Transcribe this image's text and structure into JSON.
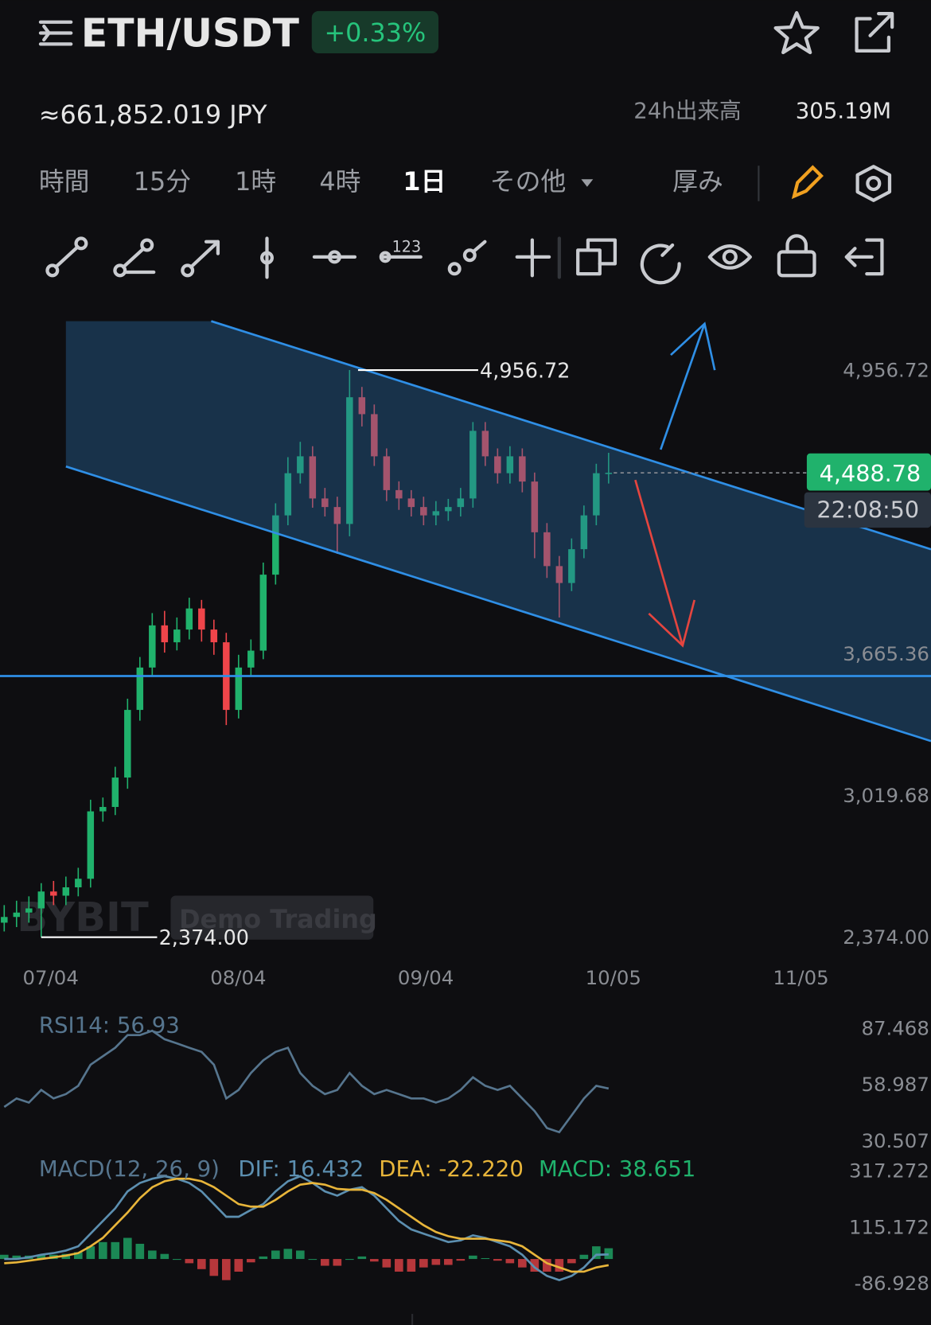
{
  "header": {
    "symbol": "ETH/USDT",
    "change": "+0.33%",
    "jpy": "≈661,852.019 JPY",
    "volume_label": "24h出来高",
    "volume": "305.19M"
  },
  "tabs": [
    "時間",
    "15分",
    "1時",
    "4時",
    "1日",
    "その他",
    "厚み"
  ],
  "chart_data": [
    {
      "type": "candlestick",
      "open": [
        2440,
        2466,
        2486,
        2505,
        2582,
        2563,
        2601,
        2640,
        2947,
        2967,
        3101,
        3409,
        3602,
        3794,
        3717,
        3775,
        3871,
        3775,
        3717,
        3409,
        3602,
        3679,
        4025,
        4295,
        4487,
        4564,
        4372,
        4333,
        4256,
        4833,
        4756,
        4564,
        4410,
        4372,
        4333,
        4295,
        4314,
        4333,
        4372,
        4680,
        4564,
        4487,
        4564,
        4449,
        4218,
        4064,
        3987,
        4141,
        4295,
        4487
      ],
      "high": [
        2520,
        2540,
        2560,
        2620,
        2630,
        2650,
        2690,
        3000,
        3010,
        3150,
        3460,
        3650,
        3850,
        3860,
        3830,
        3920,
        3910,
        3820,
        3760,
        3660,
        3730,
        4080,
        4350,
        4560,
        4630,
        4610,
        4420,
        4380,
        4956.72,
        4880,
        4800,
        4600,
        4450,
        4410,
        4380,
        4360,
        4370,
        4420,
        4720,
        4720,
        4600,
        4610,
        4600,
        4490,
        4260,
        4110,
        4190,
        4340,
        4530,
        4580
      ],
      "low": [
        2400,
        2420,
        2440,
        2374,
        2520,
        2520,
        2560,
        2600,
        2900,
        2930,
        3050,
        3360,
        3560,
        3670,
        3680,
        3730,
        3720,
        3660,
        3340,
        3370,
        3560,
        3640,
        3980,
        4250,
        4440,
        4330,
        4290,
        4120,
        4200,
        4700,
        4520,
        4360,
        4320,
        4290,
        4250,
        4250,
        4270,
        4290,
        4330,
        4520,
        4440,
        4440,
        4400,
        4100,
        4010,
        3830,
        3950,
        4100,
        4250,
        4440
      ],
      "close": [
        2466,
        2486,
        2505,
        2582,
        2563,
        2601,
        2640,
        2947,
        2967,
        3101,
        3409,
        3602,
        3794,
        3717,
        3775,
        3871,
        3775,
        3717,
        3409,
        3602,
        3679,
        4025,
        4295,
        4487,
        4564,
        4372,
        4333,
        4256,
        4833,
        4756,
        4564,
        4410,
        4372,
        4333,
        4295,
        4314,
        4333,
        4372,
        4680,
        4564,
        4487,
        4564,
        4449,
        4218,
        4064,
        3987,
        4141,
        4295,
        4487,
        4489
      ],
      "up_color": "#20b26c",
      "down_color": "#ef454a",
      "ylim": [
        2332,
        5218
      ],
      "yticks": [
        {
          "value": 4956.72,
          "label": "4,956.72"
        },
        {
          "value": 3665.36,
          "label": "3,665.36"
        },
        {
          "value": 3019.68,
          "label": "3,019.68"
        },
        {
          "value": 2374,
          "label": "2,374.00"
        }
      ],
      "xticks": [
        "07/04",
        "08/04",
        "09/04",
        "10/05",
        "11/05"
      ],
      "last_price": {
        "value": 4488.78,
        "label": "4,488.78"
      },
      "countdown": "22:08:50",
      "annotations": [
        {
          "value": 4956.72,
          "label": "4,956.72"
        },
        {
          "value": 2374,
          "label": "2,374.00"
        }
      ],
      "watermark": "BYBIT",
      "demo": "Demo Trading"
    },
    {
      "type": "line",
      "legend": "RSI14: 56.93",
      "color": "#56758e",
      "values": [
        47.6,
        51.9,
        49.8,
        56.2,
        51.9,
        54.1,
        58.3,
        69.0,
        73.3,
        77.6,
        84.0,
        84.0,
        86.2,
        81.9,
        79.8,
        77.6,
        75.5,
        69.0,
        51.9,
        56.2,
        64.8,
        71.2,
        75.5,
        77.6,
        64.8,
        58.3,
        54.1,
        56.2,
        64.8,
        58.3,
        54.1,
        56.2,
        54.1,
        51.9,
        51.9,
        49.8,
        51.9,
        56.2,
        62.6,
        58.3,
        56.2,
        58.3,
        51.9,
        45.5,
        36.9,
        34.8,
        43.3,
        51.9,
        58.3,
        56.93
      ],
      "ylim": [
        26.2,
        94.7
      ],
      "yticks": [
        87.468,
        58.987,
        30.507
      ]
    },
    {
      "type": "macd",
      "title": "MACD(12, 26, 9)",
      "down_color": "#ef454a",
      "series": [
        {
          "name": "DIF: 16.432",
          "color": "#5c8fb0",
          "values": [
            0,
            0,
            6.1,
            15.2,
            21.3,
            30.4,
            45.6,
            91.2,
            136.8,
            182.3,
            243.1,
            273.5,
            288.7,
            297.8,
            288.7,
            273.5,
            243.1,
            197.5,
            151.9,
            151.9,
            176.3,
            197.5,
            243.1,
            279.6,
            297.8,
            273.5,
            243.1,
            227.9,
            249.2,
            258.3,
            227.9,
            182.3,
            136.8,
            106.4,
            91.2,
            76.0,
            60.8,
            66.9,
            85.1,
            76.0,
            60.8,
            45.6,
            15.2,
            -30.4,
            -60.8,
            -76.0,
            -60.8,
            -30.4,
            15.2,
            16.432
          ]
        },
        {
          "name": "DEA: -22.220",
          "color": "#e8b53a",
          "values": [
            -15.2,
            -12.2,
            -6.1,
            0,
            6.1,
            12.2,
            21.3,
            45.6,
            76.0,
            121.6,
            167.1,
            218.8,
            258.3,
            279.6,
            288.7,
            288.7,
            279.6,
            258.3,
            227.9,
            197.5,
            188.4,
            188.4,
            212.7,
            243.1,
            267.4,
            273.5,
            267.4,
            252.2,
            249.2,
            249.2,
            237.0,
            212.7,
            182.3,
            151.9,
            121.6,
            97.2,
            82.1,
            72.9,
            72.9,
            72.9,
            66.9,
            60.8,
            45.6,
            15.2,
            -15.2,
            -30.4,
            -45.6,
            -45.6,
            -30.4,
            -22.22
          ]
        },
        {
          "name": "MACD: 38.651",
          "color": "#20b26c",
          "values": [
            15.2,
            12.2,
            12.2,
            15.2,
            15.2,
            18.2,
            24.3,
            45.6,
            60.8,
            60.7,
            76.0,
            54.7,
            30.4,
            18.2,
            0,
            -15.2,
            -36.5,
            -60.8,
            -76.0,
            -45.6,
            -12.1,
            9.1,
            30.4,
            36.5,
            30.4,
            0,
            -24.3,
            -24.3,
            0,
            9.1,
            -9.1,
            -30.4,
            -45.5,
            -45.5,
            -30.4,
            -21.2,
            -21.3,
            -6.0,
            12.2,
            3.1,
            -6.1,
            -15.2,
            -30.4,
            -45.6,
            -45.6,
            -45.6,
            -15.2,
            15.2,
            45.6,
            38.651
          ]
        }
      ],
      "ylim": [
        -136.8,
        364.7
      ],
      "yticks": [
        317.272,
        115.172,
        -86.928
      ]
    }
  ]
}
